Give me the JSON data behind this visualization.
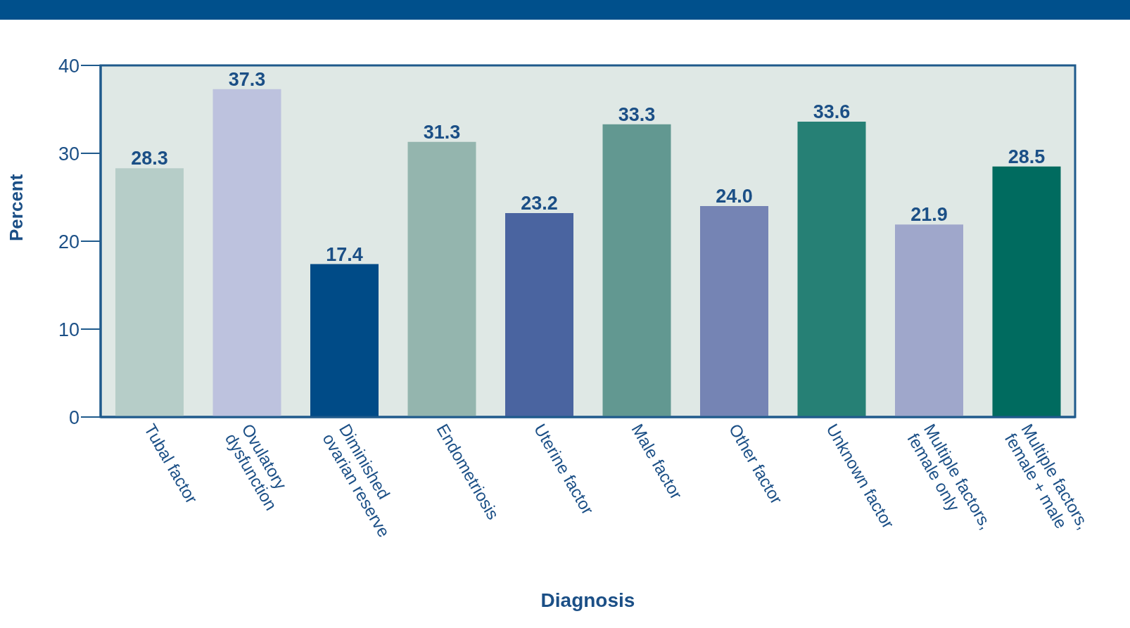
{
  "chart_data": {
    "type": "bar",
    "xlabel": "Diagnosis",
    "ylabel": "Percent",
    "categories": [
      "Tubal factor",
      "Ovulatory dysfunction",
      "Diminished ovarian reserve",
      "Endometriosis",
      "Uterine factor",
      "Male factor",
      "Other factor",
      "Unknown factor",
      "Multiple factors, female only",
      "Multiple factors, female + male"
    ],
    "values": [
      28.3,
      37.3,
      17.4,
      31.3,
      23.2,
      33.3,
      24.0,
      33.6,
      21.9,
      28.5
    ],
    "value_labels": [
      "28.3",
      "37.3",
      "17.4",
      "31.3",
      "23.2",
      "33.3",
      "24.0",
      "33.6",
      "21.9",
      "28.5"
    ],
    "colors": [
      "#b6cdc8",
      "#bdc2de",
      "#004b87",
      "#94b5ae",
      "#4a64a0",
      "#629891",
      "#7584b4",
      "#268075",
      "#9fa7cb",
      "#006b5f"
    ],
    "ylim": [
      0,
      40
    ],
    "yticks": [
      0,
      10,
      20,
      30,
      40
    ],
    "grid": false
  }
}
